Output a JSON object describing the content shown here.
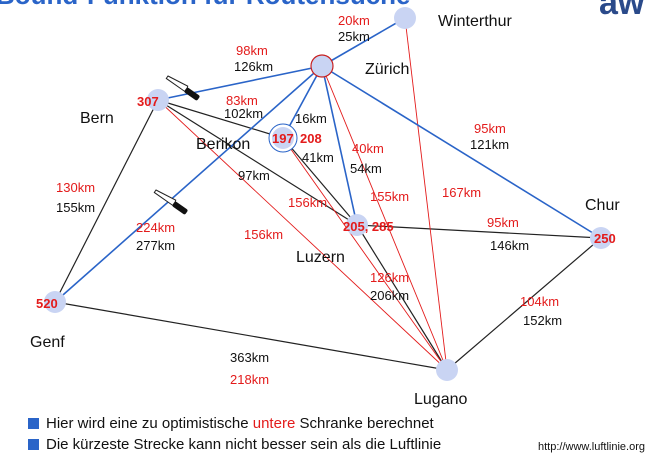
{
  "title": "Bound-Funktion für Routensuche",
  "logo": "aw",
  "colors": {
    "blue_edge": "#2a64c8",
    "red_edge": "#e31b1b",
    "black_edge": "#222222",
    "node_fill": "#c9d4f3",
    "node_outline": "#c72020",
    "accent": "#2a64c8"
  },
  "nodes": {
    "winterthur": {
      "label": "Winterthur",
      "value": ""
    },
    "zurich": {
      "label": "Zürich",
      "value": ""
    },
    "bern": {
      "label": "Bern",
      "value": "307"
    },
    "berikon": {
      "label": "Berikon",
      "value": "197",
      "value2": "208"
    },
    "luzern": {
      "label": "Luzern",
      "value": "205, 285"
    },
    "chur": {
      "label": "Chur",
      "value": "250"
    },
    "genf": {
      "label": "Genf",
      "value": "520"
    },
    "lugano": {
      "label": "Lugano",
      "value": ""
    }
  },
  "edge_labels": {
    "zw_red": "20km",
    "zw_black": "25km",
    "bz_red": "98km",
    "bz_black": "126km",
    "bb_red": "83km",
    "bb_black": "102km",
    "bkz_black": "16km",
    "bkl_black": "41km",
    "zl_red": "40km",
    "zl_black": "54km",
    "zc_red": "95km",
    "zc_black": "121km",
    "bg_red": "130km",
    "bg_black": "155km",
    "bl_black": "97km",
    "bluz_red": "156km",
    "blug_red": "156km",
    "zlug_red": "155km",
    "wlug_red": "167km",
    "gz_red": "224km",
    "gz_black": "277km",
    "lc_red": "95km",
    "lc_black": "146km",
    "llug_red": "126km",
    "llug_black": "206km",
    "clug_red": "104km",
    "clug_black": "152km",
    "glug_black": "363km",
    "glug_red": "218km"
  },
  "bullets": [
    {
      "before": "Hier wird eine zu optimistische ",
      "highlight": "untere",
      "after": " Schranke berechnet"
    },
    {
      "text": "Die kürzeste Strecke kann nicht besser sein als die Luftlinie"
    }
  ],
  "source_url": "http://www.luftlinie.org"
}
